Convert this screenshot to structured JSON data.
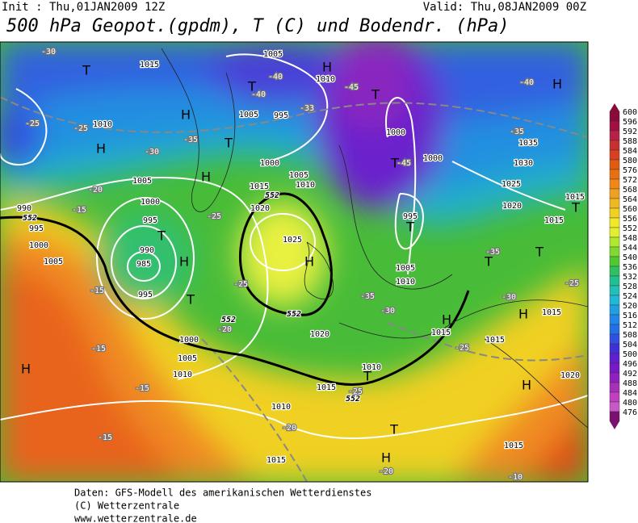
{
  "header": {
    "init": "Init : Thu,01JAN2009 12Z",
    "valid": "Valid: Thu,08JAN2009 00Z",
    "title": "500 hPa Geopot.(gpdm), T (C) und Bodendr. (hPa)"
  },
  "legend": {
    "labels": [
      "600",
      "596",
      "592",
      "588",
      "584",
      "580",
      "576",
      "572",
      "568",
      "564",
      "560",
      "556",
      "552",
      "548",
      "544",
      "540",
      "536",
      "532",
      "528",
      "524",
      "520",
      "516",
      "512",
      "508",
      "504",
      "500",
      "496",
      "492",
      "488",
      "484",
      "480",
      "476"
    ]
  },
  "map": {
    "labels": [
      "H",
      "H",
      "H",
      "H",
      "H",
      "H",
      "H",
      "H",
      "H",
      "H",
      "H",
      "H",
      "T",
      "T",
      "T",
      "T",
      "T",
      "T",
      "T",
      "T",
      "T",
      "T",
      "T",
      "T",
      "T",
      "1005",
      "1015",
      "1010",
      "1010",
      "1005",
      "995",
      "1000",
      "1005",
      "1010",
      "1015",
      "1020",
      "1025",
      "1005",
      "1000",
      "995",
      "990",
      "985",
      "995",
      "1000",
      "1005",
      "1010",
      "1020",
      "1015",
      "1010",
      "1015",
      "1010",
      "1015",
      "1015",
      "1015",
      "1020",
      "1015",
      "1000",
      "1000",
      "995",
      "1005",
      "1010",
      "1025",
      "1020",
      "1015",
      "1030",
      "1035",
      "1015",
      "990",
      "995",
      "1000",
      "1005",
      "552",
      "552",
      "552",
      "552",
      "552",
      "-30",
      "-25",
      "-25",
      "-30",
      "-35",
      "-20",
      "-15",
      "-25",
      "-25",
      "-20",
      "-15",
      "-15",
      "-15",
      "-15",
      "-20",
      "-20",
      "-25",
      "-25",
      "-30",
      "-35",
      "-40",
      "-40",
      "-45",
      "-45",
      "-40",
      "-35",
      "-35",
      "-30",
      "-25",
      "-10",
      "-33"
    ]
  },
  "footer": {
    "lines": [
      "Daten: GFS-Modell des amerikanischen Wetterdienstes",
      "(C) Wetterzentrale",
      "www.wetterzentrale.de"
    ]
  }
}
